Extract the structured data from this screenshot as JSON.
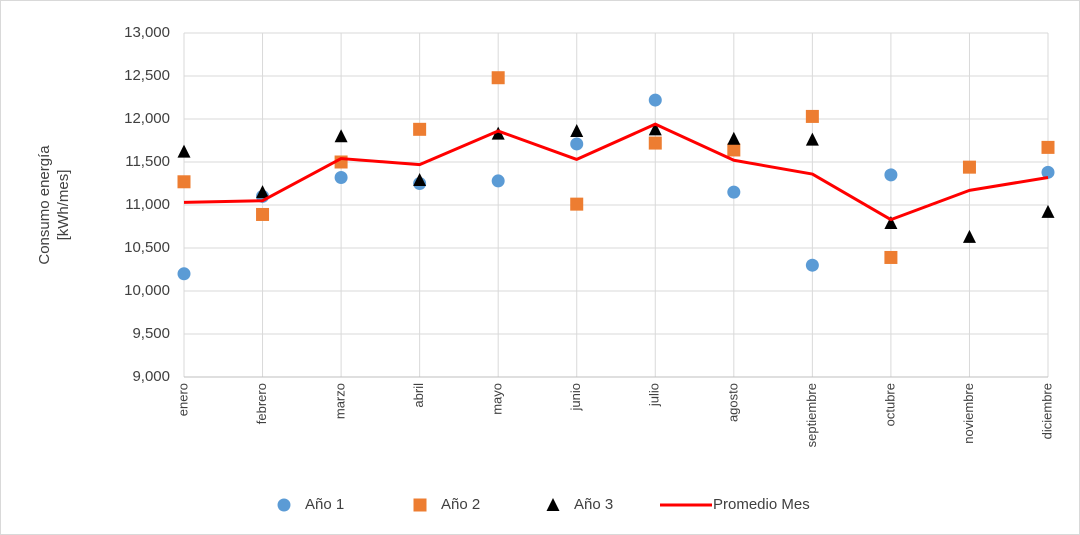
{
  "chart_data": {
    "type": "scatter_line",
    "y_label": [
      "Consumo energía",
      "[kWh/mes]"
    ],
    "categories": [
      "enero",
      "febrero",
      "marzo",
      "abril",
      "mayo",
      "junio",
      "julio",
      "agosto",
      "septiembre",
      "octubre",
      "noviembre",
      "diciembre"
    ],
    "series": [
      {
        "name": "Año 1",
        "color": "#5b9bd5",
        "marker": "circle",
        "values": [
          10200,
          11100,
          11320,
          11250,
          11280,
          11710,
          12220,
          11150,
          10300,
          11350,
          null,
          11380
        ]
      },
      {
        "name": "Año 2",
        "color": "#ed7d31",
        "marker": "square",
        "values": [
          11270,
          10890,
          11500,
          11880,
          12480,
          11010,
          11720,
          11640,
          12030,
          10390,
          11440,
          11670
        ]
      },
      {
        "name": "Año 3",
        "color": "#000000",
        "marker": "triangle",
        "values": [
          11620,
          11150,
          11800,
          11290,
          11830,
          11860,
          11880,
          11770,
          11760,
          10790,
          10630,
          10920
        ]
      },
      {
        "name": "Promedio Mes",
        "color": "#ff0000",
        "marker": "line",
        "values": [
          11030,
          11050,
          11540,
          11470,
          11860,
          11530,
          11940,
          11520,
          11360,
          10830,
          11170,
          11320
        ]
      }
    ],
    "ylim": [
      9000,
      13000
    ],
    "yticks": [
      {
        "value": 9000,
        "label": "9,000"
      },
      {
        "value": 9500,
        "label": "9,500"
      },
      {
        "value": 10000,
        "label": "10,000"
      },
      {
        "value": 10500,
        "label": "10,500"
      },
      {
        "value": 11000,
        "label": "11,000"
      },
      {
        "value": 11500,
        "label": "11,500"
      },
      {
        "value": 12000,
        "label": "12,000"
      },
      {
        "value": 12500,
        "label": "12,500"
      },
      {
        "value": 13000,
        "label": "13,000"
      }
    ],
    "grid": true,
    "legend": "bottom"
  }
}
